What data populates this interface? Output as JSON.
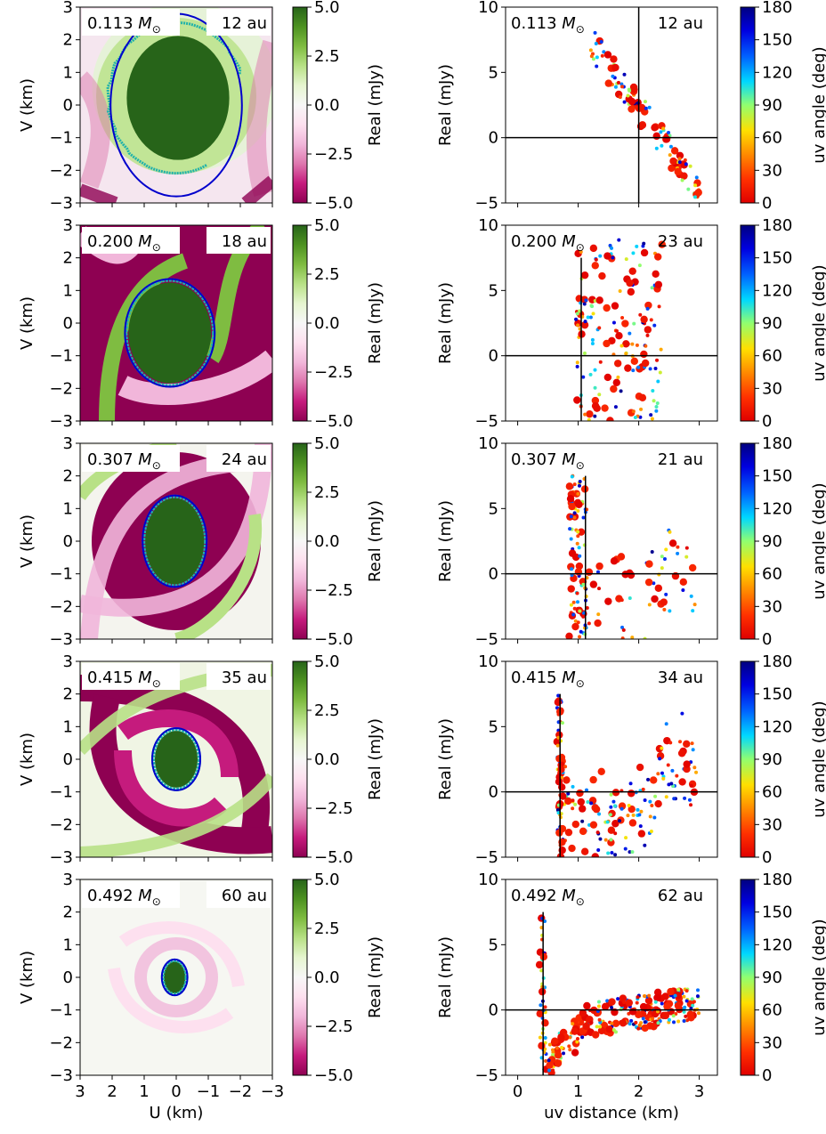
{
  "figure": {
    "colors": {
      "green": "#276419",
      "magenta": "#8e0152",
      "ellipse": "#0000cc",
      "contour": "#20b2aa"
    }
  },
  "chart_data": [
    {
      "type": "heatmap",
      "rows": [
        {
          "mass_value": "0.113",
          "radius_label": "12 au",
          "ellipse": {
            "cx": 0,
            "cy": 0,
            "a": 2.05,
            "b": 2.8
          },
          "spiral_arms": 0
        },
        {
          "mass_value": "0.200",
          "radius_label": "18 au",
          "ellipse": {
            "cx": 0.2,
            "cy": -0.3,
            "a": 1.4,
            "b": 1.65
          },
          "spiral_arms": 2
        },
        {
          "mass_value": "0.307",
          "radius_label": "24 au",
          "ellipse": {
            "cx": 0.05,
            "cy": 0,
            "a": 1.0,
            "b": 1.4
          },
          "spiral_arms": 2
        },
        {
          "mass_value": "0.415",
          "radius_label": "35 au",
          "ellipse": {
            "cx": 0,
            "cy": 0,
            "a": 0.75,
            "b": 0.95
          },
          "spiral_arms": 2
        },
        {
          "mass_value": "0.492",
          "radius_label": "60 au",
          "ellipse": {
            "cx": 0.05,
            "cy": 0,
            "a": 0.4,
            "b": 0.55
          },
          "spiral_arms": 2
        }
      ],
      "mass_unit": "M",
      "mass_unit_sub": "⊙",
      "xlabel": "U (km)",
      "ylabel": "V (km)",
      "xlim": [
        3,
        -3
      ],
      "ylim": [
        -3,
        3
      ],
      "xticks": [
        "3",
        "2",
        "1",
        "0",
        "−1",
        "−2",
        "−3"
      ],
      "yticks": [
        "3",
        "2",
        "1",
        "0",
        "−1",
        "−2",
        "−3"
      ],
      "colorbar": {
        "label": "Real (mJy)",
        "range": [
          -5,
          5
        ],
        "ticks": [
          "5.0",
          "2.5",
          "0.0",
          "−2.5",
          "−5.0"
        ],
        "colormap": "PiYG"
      }
    },
    {
      "type": "scatter",
      "rows": [
        {
          "mass_value": "0.113",
          "radius_label": "12 au",
          "vline_x": 2.0,
          "vline_ymax": 10
        },
        {
          "mass_value": "0.200",
          "radius_label": "23 au",
          "vline_x": 1.05,
          "vline_ymax": 7.5
        },
        {
          "mass_value": "0.307",
          "radius_label": "21 au",
          "vline_x": 1.12,
          "vline_ymax": 7.5
        },
        {
          "mass_value": "0.415",
          "radius_label": "34 au",
          "vline_x": 0.7,
          "vline_ymax": 7.5
        },
        {
          "mass_value": "0.492",
          "radius_label": "62 au",
          "vline_x": 0.42,
          "vline_ymax": 7.5
        }
      ],
      "mass_unit": "M",
      "mass_unit_sub": "⊙",
      "xlabel": "uv distance (km)",
      "ylabel": "Real (mJy)",
      "xlim": [
        -0.2,
        3.3
      ],
      "ylim": [
        -5,
        10
      ],
      "xticks": [
        "0",
        "1",
        "2",
        "3"
      ],
      "yticks": [
        "10",
        "5",
        "0",
        "−5"
      ],
      "colorbar": {
        "label": "uv angle (deg)",
        "range": [
          0,
          180
        ],
        "ticks": [
          "180",
          "150",
          "120",
          "90",
          "60",
          "30",
          "0"
        ],
        "colormap": "jet_r"
      }
    }
  ]
}
